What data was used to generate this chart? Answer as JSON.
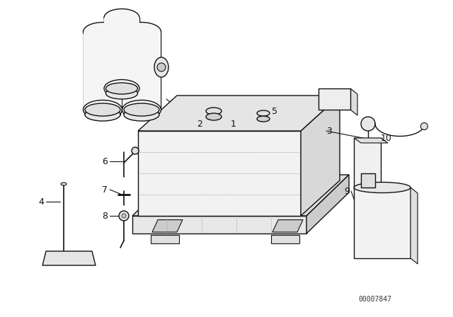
{
  "background_color": "#ffffff",
  "line_color": "#111111",
  "line_width": 1.0,
  "watermark": "00007847",
  "fig_width": 6.4,
  "fig_height": 4.48
}
